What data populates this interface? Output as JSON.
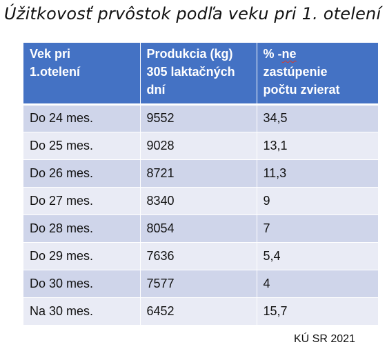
{
  "title": "Úžitkovosť prvôstok podľa veku pri 1. otelení",
  "table": {
    "headers": {
      "age": [
        "Vek pri",
        "1.otelení"
      ],
      "production": [
        "Produkcia (kg)",
        "305 laktačných",
        "dní"
      ],
      "share": {
        "line1_prefix": "% -",
        "line1_flagged": "ne",
        "line2": "zastúpenie",
        "line3": "počtu zvierat"
      }
    },
    "rows": [
      {
        "age": "Do 24 mes.",
        "production": "9552",
        "share": "34,5"
      },
      {
        "age": "Do 25 mes.",
        "production": "9028",
        "share": "13,1"
      },
      {
        "age": "Do 26 mes.",
        "production": "8721",
        "share": "11,3"
      },
      {
        "age": "Do 27 mes.",
        "production": "8340",
        "share": "9"
      },
      {
        "age": "Do 28 mes.",
        "production": "8054",
        "share": "7"
      },
      {
        "age": "Do 29 mes.",
        "production": "7636",
        "share": "5,4"
      },
      {
        "age": "Do 30 mes.",
        "production": "7577",
        "share": "4"
      },
      {
        "age": "Na 30 mes.",
        "production": "6452",
        "share": "15,7"
      }
    ]
  },
  "source": "KÚ SR 2021",
  "colors": {
    "header_bg": "#4472c4",
    "row_dark": "#cfd5ea",
    "row_light": "#e9ebf5",
    "spellcheck_underline": "#d83b2b"
  }
}
